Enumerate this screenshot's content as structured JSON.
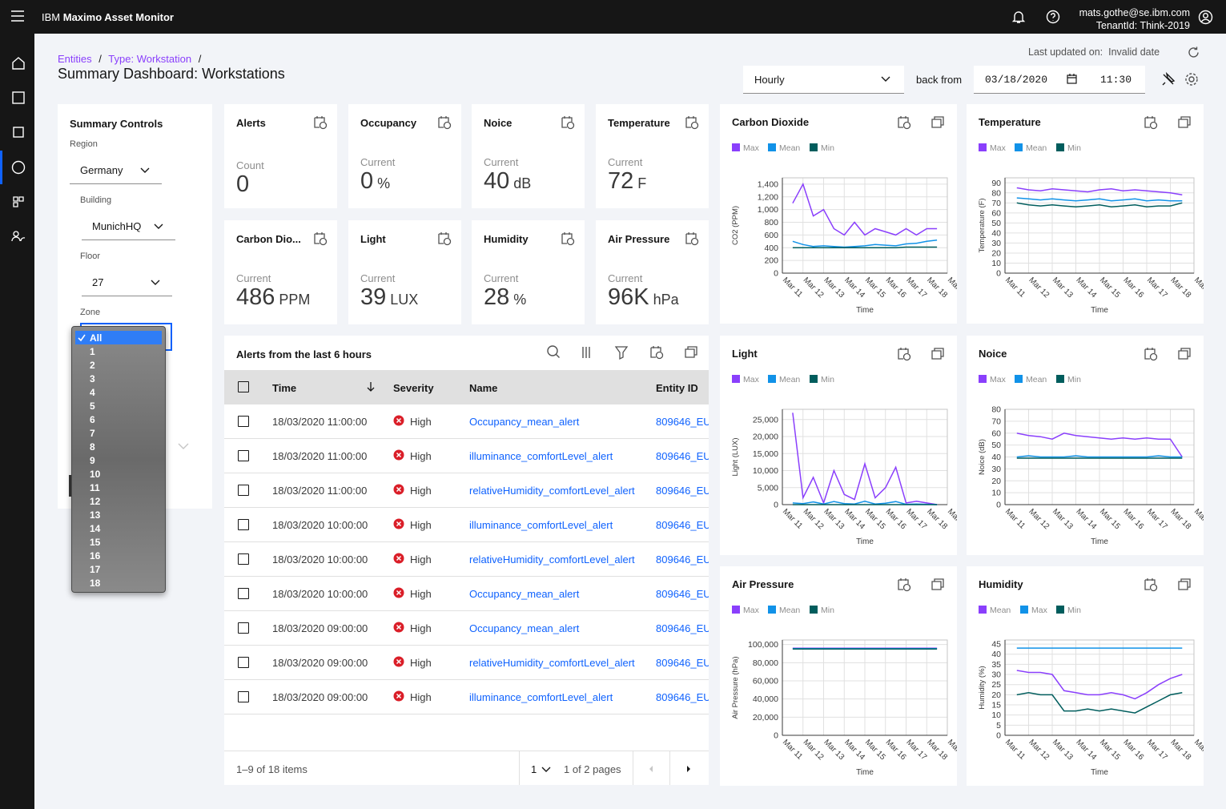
{
  "header": {
    "brand": "IBM",
    "product": "Maximo Asset Monitor",
    "user": "mats.gothe@se.ibm.com",
    "tenant": "TenantId: Think-2019"
  },
  "breadcrumb": {
    "items": [
      "Entities",
      "Type: Workstation"
    ],
    "separator": "/"
  },
  "page_title": "Summary Dashboard: Workstations",
  "toolbar": {
    "last_updated_label": "Last updated on:",
    "last_updated_value": "Invalid date",
    "interval": "Hourly",
    "back_from": "back from",
    "date": "03/18/2020",
    "time": "11:30"
  },
  "controls": {
    "title": "Summary Controls",
    "fields": [
      {
        "label": "Region",
        "value": "Germany"
      },
      {
        "label": "Building",
        "value": "MunichHQ"
      },
      {
        "label": "Floor",
        "value": "27"
      }
    ],
    "zone": {
      "label": "Zone",
      "options": [
        "All",
        "1",
        "2",
        "3",
        "4",
        "5",
        "6",
        "7",
        "8",
        "9",
        "10",
        "11",
        "12",
        "13",
        "14",
        "15",
        "16",
        "17",
        "18"
      ]
    }
  },
  "kpis": [
    {
      "title": "Alerts",
      "label": "Count",
      "value": 0
    },
    {
      "title": "Occupancy",
      "label": "Current",
      "value": 0,
      "unit": "%"
    },
    {
      "title": "Noice",
      "label": "Current",
      "value": 40,
      "unit": "dB"
    },
    {
      "title": "Temperature",
      "label": "Current",
      "value": 72,
      "unit": "F"
    },
    {
      "title": "Carbon Dio...",
      "label": "Current",
      "value": 486,
      "unit": "PPM"
    },
    {
      "title": "Light",
      "label": "Current",
      "value": 39,
      "unit": "LUX"
    },
    {
      "title": "Humidity",
      "label": "Current",
      "value": 28,
      "unit": "%"
    },
    {
      "title": "Air Pressure",
      "label": "Current",
      "value": "96K",
      "unit": "hPa"
    }
  ],
  "alerts": {
    "title": "Alerts from the last 6 hours",
    "columns": [
      "Time",
      "Severity",
      "Name",
      "Entity ID"
    ],
    "rows": [
      [
        "18/03/2020 11:00:00",
        "High",
        "Occupancy_mean_alert",
        "809646_EU"
      ],
      [
        "18/03/2020 11:00:00",
        "High",
        "illuminance_comfortLevel_alert",
        "809646_EU"
      ],
      [
        "18/03/2020 11:00:00",
        "High",
        "relativeHumidity_comfortLevel_alert",
        "809646_EU"
      ],
      [
        "18/03/2020 10:00:00",
        "High",
        "illuminance_comfortLevel_alert",
        "809646_EU"
      ],
      [
        "18/03/2020 10:00:00",
        "High",
        "relativeHumidity_comfortLevel_alert",
        "809646_EU"
      ],
      [
        "18/03/2020 10:00:00",
        "High",
        "Occupancy_mean_alert",
        "809646_EU"
      ],
      [
        "18/03/2020 09:00:00",
        "High",
        "Occupancy_mean_alert",
        "809646_EU"
      ],
      [
        "18/03/2020 09:00:00",
        "High",
        "relativeHumidity_comfortLevel_alert",
        "809646_EU"
      ],
      [
        "18/03/2020 09:00:00",
        "High",
        "illuminance_comfortLevel_alert",
        "809646_EU"
      ]
    ],
    "items": "1–9 of 18 items",
    "page": "1",
    "pages": "1 of 2 pages"
  },
  "chart_data": [
    {
      "type": "line",
      "title": "Carbon Dioxide",
      "y_label": "CO2 (PPM)",
      "x_label": "Time",
      "grid": true,
      "categories": [
        "Mar 11",
        null,
        "Mar 12",
        null,
        "Mar 13",
        null,
        "Mar 14",
        null,
        "Mar 15",
        null,
        "Mar 16",
        null,
        "Mar 17",
        null,
        "Mar 18",
        null,
        "Mar 19"
      ],
      "series": [
        {
          "name": "Max",
          "color": "#8a3ffc",
          "values": [
            null,
            1100,
            1400,
            900,
            1000,
            700,
            600,
            800,
            600,
            700,
            650,
            600,
            700,
            600,
            700,
            700,
            null
          ]
        },
        {
          "name": "Mean",
          "color": "#1192e8",
          "values": [
            null,
            500,
            450,
            420,
            430,
            420,
            410,
            420,
            430,
            450,
            440,
            430,
            460,
            470,
            500,
            520,
            null
          ]
        },
        {
          "name": "Min",
          "color": "#005d5d",
          "values": [
            null,
            400,
            400,
            400,
            400,
            400,
            400,
            400,
            400,
            400,
            400,
            400,
            410,
            410,
            410,
            410,
            null
          ]
        }
      ],
      "ylim": [
        0,
        1500
      ],
      "yticks": [
        0,
        200,
        400,
        600,
        800,
        {
          "value": 1000,
          "label": "1,000"
        },
        {
          "value": 1200,
          "label": "1,200"
        },
        {
          "value": 1400,
          "label": "1,400"
        }
      ]
    },
    {
      "type": "line",
      "title": "Temperature",
      "y_label": "Temperature (F)",
      "x_label": "Time",
      "grid": true,
      "categories": [
        "Mar 11",
        null,
        "Mar 12",
        null,
        "Mar 13",
        null,
        "Mar 14",
        null,
        "Mar 15",
        null,
        "Mar 16",
        null,
        "Mar 17",
        null,
        "Mar 18",
        null,
        "Mar 19"
      ],
      "series": [
        {
          "name": "Max",
          "color": "#8a3ffc",
          "values": [
            null,
            85,
            83,
            82,
            84,
            83,
            82,
            81,
            83,
            84,
            82,
            83,
            82,
            81,
            80,
            78,
            null
          ]
        },
        {
          "name": "Mean",
          "color": "#1192e8",
          "values": [
            null,
            75,
            74,
            73,
            74,
            73,
            72,
            73,
            74,
            72,
            73,
            74,
            72,
            73,
            72,
            72,
            null
          ]
        },
        {
          "name": "Min",
          "color": "#005d5d",
          "values": [
            null,
            70,
            68,
            67,
            68,
            67,
            66,
            67,
            68,
            66,
            67,
            68,
            66,
            67,
            67,
            70,
            null
          ]
        }
      ],
      "ylim": [
        0,
        95
      ],
      "yticks": [
        0,
        10,
        20,
        30,
        40,
        50,
        60,
        70,
        80,
        90
      ]
    },
    {
      "type": "line",
      "title": "Light",
      "y_label": "Light (LUX)",
      "x_label": "Time",
      "grid": true,
      "categories": [
        "Mar 11",
        null,
        "Mar 12",
        null,
        "Mar 13",
        null,
        "Mar 14",
        null,
        "Mar 15",
        null,
        "Mar 16",
        null,
        "Mar 17",
        null,
        "Mar 18",
        null,
        "Mar 19"
      ],
      "series": [
        {
          "name": "Max",
          "color": "#8a3ffc",
          "values": [
            null,
            27000,
            2000,
            8000,
            500,
            10000,
            3000,
            1500,
            12000,
            2000,
            5000,
            11000,
            500,
            1000,
            500,
            0,
            null
          ]
        },
        {
          "name": "Mean",
          "color": "#1192e8",
          "values": [
            null,
            500,
            300,
            800,
            200,
            900,
            300,
            200,
            1000,
            200,
            400,
            900,
            100,
            200,
            100,
            0,
            null
          ]
        },
        {
          "name": "Min",
          "color": "#005d5d",
          "values": [
            null,
            0,
            0,
            0,
            0,
            0,
            0,
            0,
            0,
            0,
            0,
            0,
            0,
            0,
            0,
            0,
            null
          ]
        }
      ],
      "ylim": [
        0,
        28000
      ],
      "yticks": [
        0,
        {
          "value": 5000,
          "label": "5,000"
        },
        {
          "value": 10000,
          "label": "10,000"
        },
        {
          "value": 15000,
          "label": "15,000"
        },
        {
          "value": 20000,
          "label": "20,000"
        },
        {
          "value": 25000,
          "label": "25,000"
        }
      ]
    },
    {
      "type": "line",
      "title": "Noice",
      "y_label": "Noice (dB)",
      "x_label": "Time",
      "grid": true,
      "categories": [
        "Mar 11",
        null,
        "Mar 12",
        null,
        "Mar 13",
        null,
        "Mar 14",
        null,
        "Mar 15",
        null,
        "Mar 16",
        null,
        "Mar 17",
        null,
        "Mar 18",
        null,
        "Mar 19"
      ],
      "series": [
        {
          "name": "Max",
          "color": "#8a3ffc",
          "values": [
            null,
            60,
            58,
            57,
            55,
            60,
            58,
            57,
            56,
            55,
            56,
            55,
            56,
            55,
            55,
            40,
            null
          ]
        },
        {
          "name": "Mean",
          "color": "#1192e8",
          "values": [
            null,
            40,
            41,
            40,
            40,
            40,
            41,
            40,
            40,
            40,
            40,
            40,
            40,
            41,
            40,
            40,
            null
          ]
        },
        {
          "name": "Min",
          "color": "#005d5d",
          "values": [
            null,
            39,
            39,
            39,
            39,
            39,
            39,
            39,
            39,
            39,
            39,
            39,
            39,
            39,
            39,
            39,
            null
          ]
        }
      ],
      "ylim": [
        0,
        80
      ],
      "yticks": [
        0,
        10,
        20,
        30,
        40,
        50,
        60,
        70,
        80
      ]
    },
    {
      "type": "line",
      "title": "Air Pressure",
      "y_label": "Air Pressure (hPa)",
      "x_label": "Time",
      "grid": true,
      "categories": [
        "Mar 11",
        null,
        "Mar 12",
        null,
        "Mar 13",
        null,
        "Mar 14",
        null,
        "Mar 15",
        null,
        "Mar 16",
        null,
        "Mar 17",
        null,
        "Mar 18",
        null,
        "Mar 19"
      ],
      "series": [
        {
          "name": "Max",
          "color": "#8a3ffc",
          "values": [
            null,
            96000,
            96000,
            96000,
            96000,
            96000,
            96000,
            96000,
            96000,
            96000,
            96000,
            96000,
            96000,
            96000,
            96000,
            96000,
            null
          ]
        },
        {
          "name": "Mean",
          "color": "#1192e8",
          "values": [
            null,
            95500,
            95500,
            95500,
            95500,
            95500,
            95500,
            95500,
            95500,
            95500,
            95500,
            95500,
            95500,
            95500,
            95500,
            95500,
            null
          ]
        },
        {
          "name": "Min",
          "color": "#005d5d",
          "values": [
            null,
            95000,
            95000,
            95000,
            95000,
            95000,
            95000,
            95000,
            95000,
            95000,
            95000,
            95000,
            95000,
            95000,
            95000,
            95000,
            null
          ]
        }
      ],
      "ylim": [
        0,
        105000
      ],
      "yticks": [
        0,
        {
          "value": 20000,
          "label": "20,000"
        },
        {
          "value": 40000,
          "label": "40,000"
        },
        {
          "value": 60000,
          "label": "60,000"
        },
        {
          "value": 80000,
          "label": "80,000"
        },
        {
          "value": 100000,
          "label": "100,000"
        }
      ]
    },
    {
      "type": "line",
      "title": "Humidity",
      "y_label": "Humidity (%)",
      "x_label": "Time",
      "grid": true,
      "categories": [
        "Mar 11",
        null,
        "Mar 12",
        null,
        "Mar 13",
        null,
        "Mar 14",
        null,
        "Mar 15",
        null,
        "Mar 16",
        null,
        "Mar 17",
        null,
        "Mar 18",
        null,
        "Mar 19"
      ],
      "series": [
        {
          "name": "Mean",
          "color": "#8a3ffc",
          "values": [
            null,
            32,
            31,
            31,
            30,
            22,
            21,
            20,
            20,
            21,
            20,
            18,
            21,
            25,
            28,
            30,
            null
          ]
        },
        {
          "name": "Max",
          "color": "#1192e8",
          "values": [
            null,
            43,
            43,
            43,
            43,
            43,
            43,
            43,
            43,
            43,
            43,
            43,
            43,
            43,
            43,
            43,
            null
          ]
        },
        {
          "name": "Min",
          "color": "#005d5d",
          "values": [
            null,
            20,
            21,
            20,
            20,
            12,
            12,
            13,
            12,
            13,
            12,
            11,
            14,
            17,
            20,
            21,
            null
          ]
        }
      ],
      "ylim": [
        0,
        47
      ],
      "yticks": [
        0,
        5,
        10,
        15,
        20,
        25,
        30,
        35,
        40,
        45
      ]
    }
  ]
}
